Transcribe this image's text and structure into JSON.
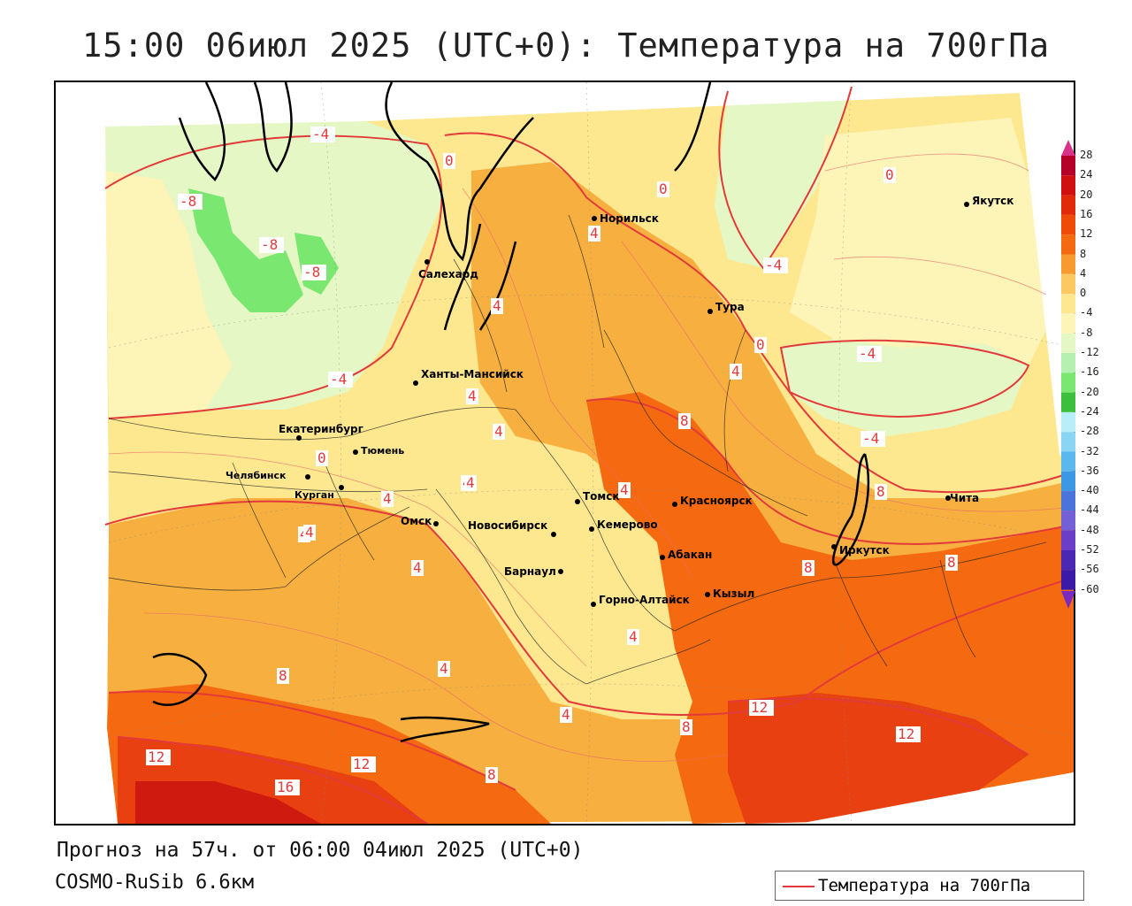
{
  "title": "15:00 06июл 2025 (UTC+0): Температура на 700гПа",
  "forecast_line": "Прогноз на 57ч. от 06:00 04июл 2025 (UTC+0)",
  "model_line": "COSMO-RuSib 6.6км",
  "legend": {
    "label": "Температура на 700гПа",
    "line_color": "#e23a3a"
  },
  "colorbar": {
    "ticks": [
      "28",
      "24",
      "20",
      "16",
      "12",
      "8",
      "4",
      "0",
      "-4",
      "-8",
      "-12",
      "-16",
      "-20",
      "-24",
      "-28",
      "-32",
      "-36",
      "-40",
      "-44",
      "-48",
      "-52",
      "-56",
      "-60"
    ],
    "colors": [
      "#b5002a",
      "#cf0f10",
      "#e02a0a",
      "#f04a08",
      "#f56a10",
      "#f79a30",
      "#fbc862",
      "#fde890",
      "#fdf4b8",
      "#e6f7c6",
      "#b6f0b0",
      "#7ae870",
      "#3cbf3c",
      "#b8eef8",
      "#8ad4f4",
      "#5ab8ee",
      "#3c98e4",
      "#4a74dc",
      "#7460d6",
      "#6a3ec6",
      "#4a28b4",
      "#3a1aa6"
    ],
    "top_arrow_color": "#d8328a",
    "bottom_arrow_color": "#7a2ac0"
  },
  "cities": [
    {
      "name": "Норильск"
    },
    {
      "name": "Салехард"
    },
    {
      "name": "Тура"
    },
    {
      "name": "Якутск"
    },
    {
      "name": "Ханты-Мансийск"
    },
    {
      "name": "Екатеринбург"
    },
    {
      "name": "Тюмень"
    },
    {
      "name": "Челябинск"
    },
    {
      "name": "Курган"
    },
    {
      "name": "Омск"
    },
    {
      "name": "Новосибирск"
    },
    {
      "name": "Томск"
    },
    {
      "name": "Кемерово"
    },
    {
      "name": "Красноярск"
    },
    {
      "name": "Барнаул"
    },
    {
      "name": "Абакан"
    },
    {
      "name": "Горно-Алтайск"
    },
    {
      "name": "Кызыл"
    },
    {
      "name": "Иркутск"
    },
    {
      "name": "Чита"
    }
  ],
  "contour_labels": [
    "-4",
    "0",
    "-8",
    "-8",
    "-8",
    "-4",
    "4",
    "4",
    "4",
    "4",
    "4",
    "4",
    "4",
    "4",
    "4",
    "4",
    "4",
    "8",
    "8",
    "8",
    "8",
    "8",
    "12",
    "12",
    "12",
    "12",
    "16",
    "0",
    "-4",
    "-4",
    "-4",
    "0",
    "0",
    "4",
    "4",
    "0",
    "8",
    "4",
    "8",
    "4"
  ]
}
